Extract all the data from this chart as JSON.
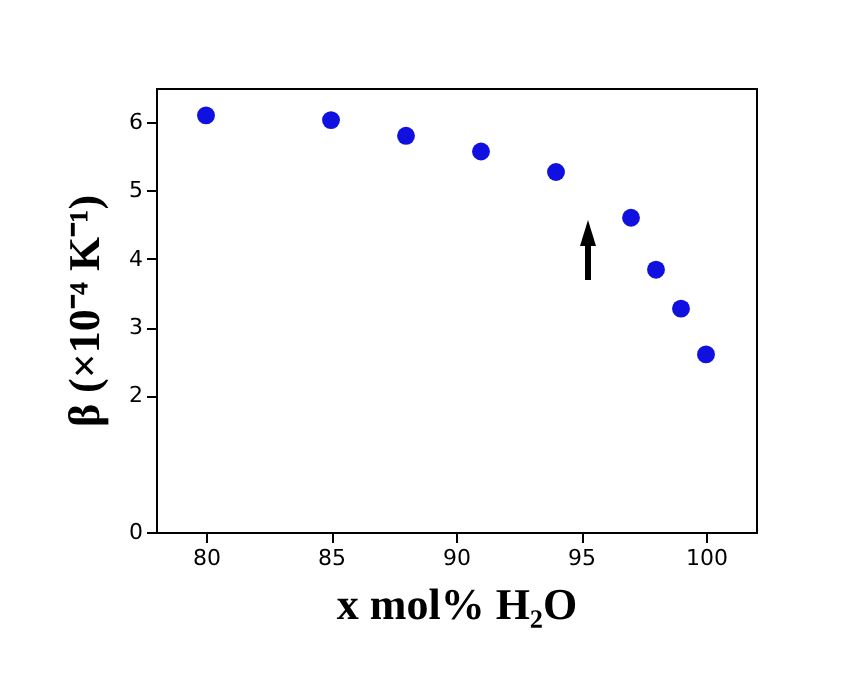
{
  "chart_data": {
    "type": "scatter",
    "xlabel": "x   mol% H₂O",
    "ylabel": "β  (×10⁻⁴  K⁻¹)",
    "x": [
      80,
      85,
      88,
      91,
      94,
      97,
      98,
      99,
      100
    ],
    "series": [
      {
        "color": "#1010e0",
        "values": [
          6.1,
          6.03,
          5.8,
          5.57,
          5.27,
          4.6,
          3.84,
          3.27,
          2.6
        ]
      }
    ],
    "xlim": [
      78,
      102
    ],
    "xticks": [
      80,
      85,
      90,
      95,
      100
    ],
    "ylim": [
      0,
      6.5
    ],
    "yticks": [
      0,
      2,
      3,
      4,
      5,
      6
    ],
    "grid": false,
    "marker": "circle"
  }
}
